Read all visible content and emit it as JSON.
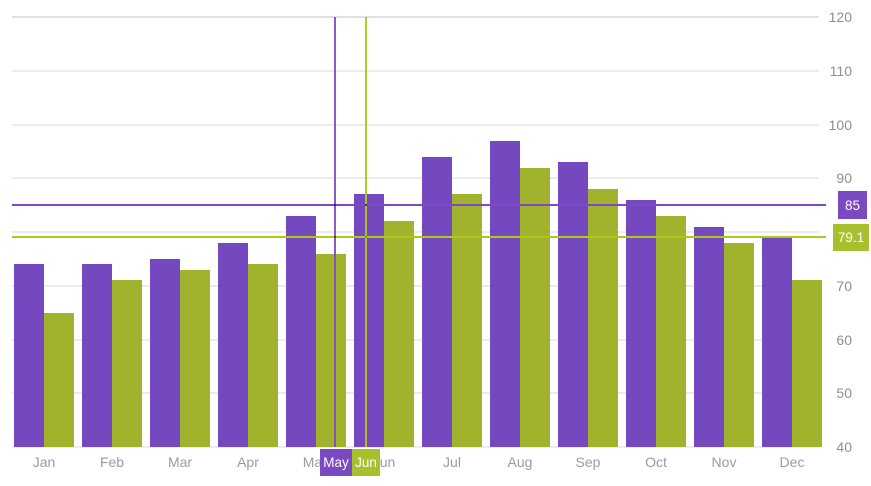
{
  "chart_data": {
    "type": "bar",
    "title": "",
    "xlabel": "",
    "ylabel": "",
    "legend": "none",
    "grid": true,
    "categories": [
      "Jan",
      "Feb",
      "Mar",
      "Apr",
      "May",
      "Jun",
      "Jul",
      "Aug",
      "Sep",
      "Oct",
      "Nov",
      "Dec"
    ],
    "series": [
      {
        "name": "purple-series",
        "color": "#7448BE",
        "values": [
          74,
          74,
          75,
          78,
          83,
          87,
          94,
          97,
          93,
          86,
          81,
          79
        ]
      },
      {
        "name": "green-series",
        "color": "#A1B32C",
        "values": [
          65,
          71,
          73,
          74,
          76,
          82,
          87,
          92,
          88,
          83,
          78,
          71
        ]
      }
    ],
    "value_axis": {
      "position": "right",
      "min": 40,
      "max": 120,
      "tick_step": 10,
      "tick_labels": [
        "40",
        "50",
        "60",
        "70",
        "80",
        "90",
        "100",
        "110",
        "120"
      ]
    },
    "crosshairs": {
      "purple": {
        "category_label": "May",
        "value_label": "85",
        "value": 85,
        "line_color": "#7C4AC6",
        "badge_color": "#7B49C1"
      },
      "green": {
        "category_label": "Jun",
        "value_label": "79.1",
        "value": 79.1,
        "line_color": "#AFC717",
        "badge_color": "#A7C02E"
      }
    }
  },
  "colors": {
    "background": "#FFFFFF",
    "bar_purple": "#7448BE",
    "bar_green": "#A1B32C",
    "grid": "#ECECEC",
    "axis_text": "#9B9B9B"
  }
}
